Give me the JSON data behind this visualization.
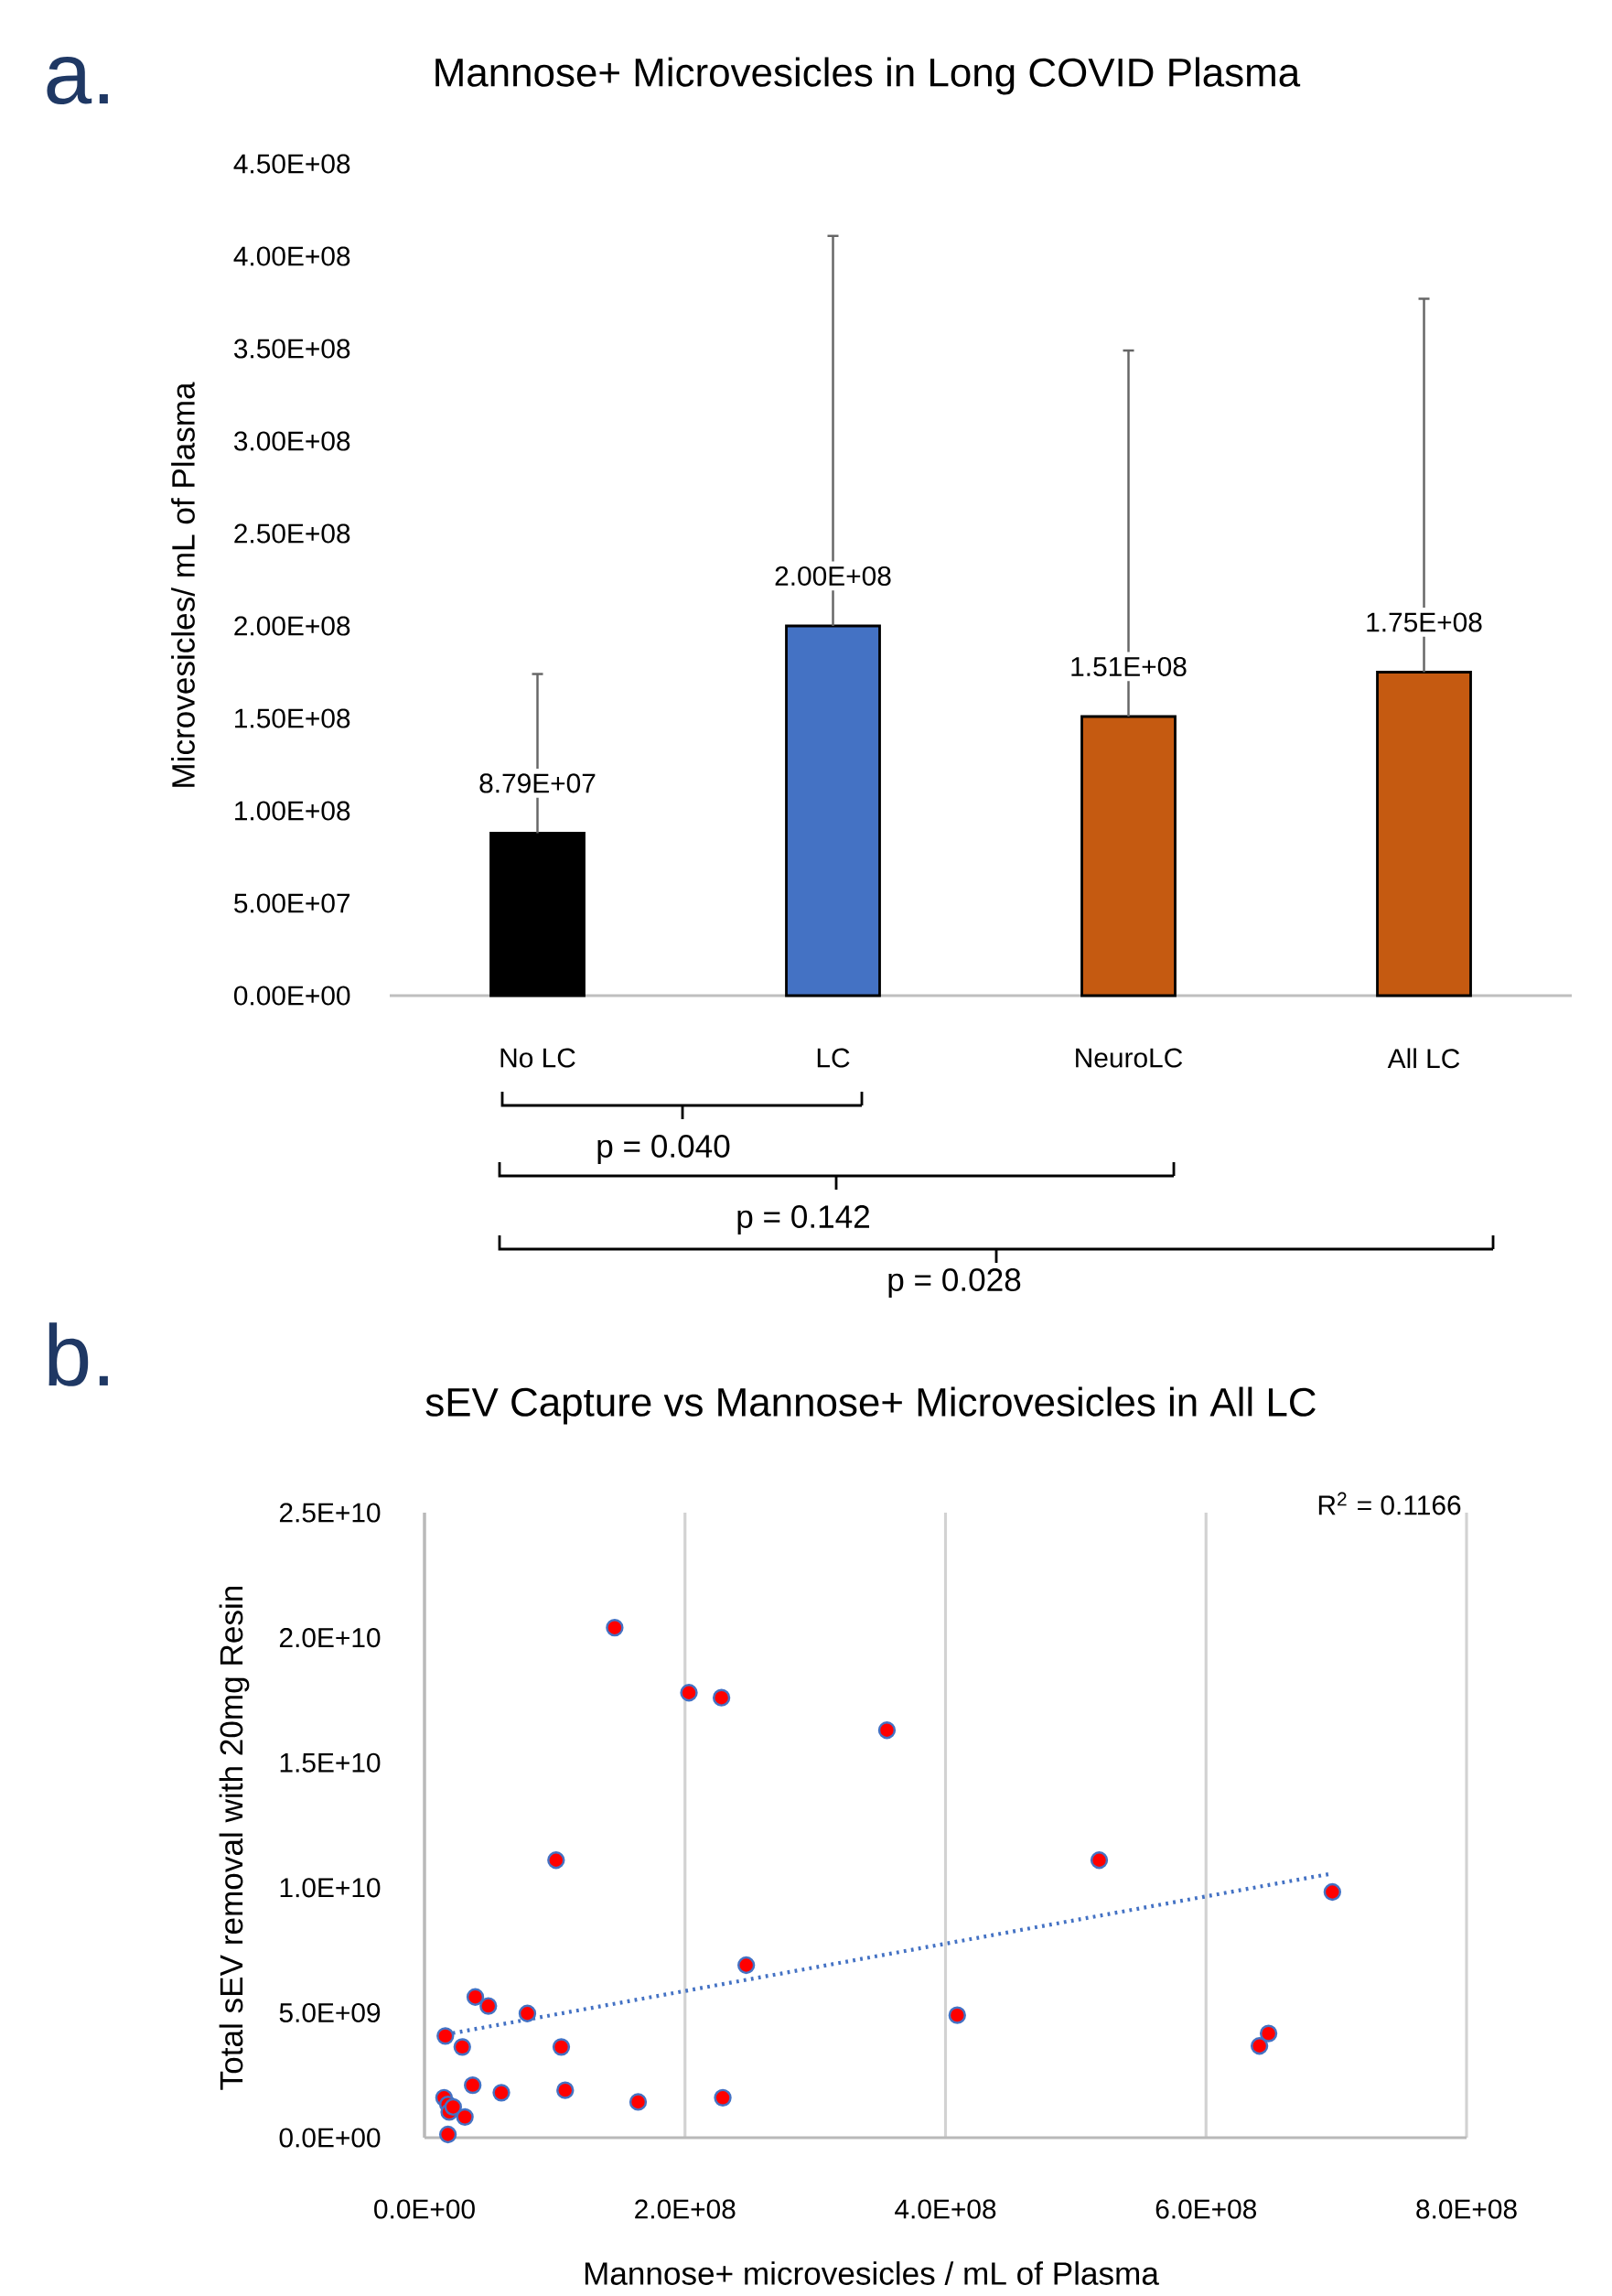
{
  "chart_data": [
    {
      "type": "bar",
      "title": "Mannose+ Microvesicles in Long COVID Plasma",
      "ylabel": "Microvesicles/ mL of Plasma",
      "categories": [
        "No LC",
        "LC",
        "NeuroLC",
        "All LC"
      ],
      "values": [
        87900000.0,
        200000000.0,
        151000000.0,
        175000000.0
      ],
      "colors": [
        "#000000",
        "#4472c4",
        "#c55a11",
        "#c55a11"
      ],
      "errors": [
        [
          87900000.0,
          174000000.0
        ],
        [
          200000000.0,
          411000000.0
        ],
        [
          151000000.0,
          349000000.0
        ],
        [
          175000000.0,
          377000000.0
        ]
      ],
      "value_labels": [
        "8.79E+07",
        "2.00E+08",
        "1.51E+08",
        "1.75E+08"
      ],
      "ylim": [
        0,
        450000000.0
      ],
      "yticks": [
        {
          "value": 0,
          "label": "0.00E+00"
        },
        {
          "value": 50000000.0,
          "label": "5.00E+07"
        },
        {
          "value": 100000000.0,
          "label": "1.00E+08"
        },
        {
          "value": 150000000.0,
          "label": "1.50E+08"
        },
        {
          "value": 200000000.0,
          "label": "2.00E+08"
        },
        {
          "value": 250000000.0,
          "label": "2.50E+08"
        },
        {
          "value": 300000000.0,
          "label": "3.00E+08"
        },
        {
          "value": 350000000.0,
          "label": "3.50E+08"
        },
        {
          "value": 400000000.0,
          "label": "4.00E+08"
        },
        {
          "value": 450000000.0,
          "label": "4.50E+08"
        }
      ],
      "annotations": [
        "a.",
        "p = 0.040",
        "p = 0.142",
        "p = 0.028"
      ]
    },
    {
      "type": "scatter",
      "title": "sEV Capture vs Mannose+ Microvesicles in All LC",
      "xlabel": "Mannose+ microvesicles / mL of Plasma",
      "ylabel": "Total sEV removal with 20mg  Resin",
      "series": [
        {
          "type": "scatter",
          "color": "#ff0000",
          "marker": "circle",
          "x": [
            146000000.0,
            203000000.0,
            228000000.0,
            355000000.0,
            101000000.0,
            518000000.0,
            697000000.0,
            247000000.0,
            39000000.0,
            49000000.0,
            79000000.0,
            409000000.0,
            16000000.0,
            29000000.0,
            105000000.0,
            648000000.0,
            641000000.0,
            37000000.0,
            59000000.0,
            108000000.0,
            164000000.0,
            229000000.0,
            15000000.0,
            18000000.0,
            19000000.0,
            22000000.0,
            31000000.0,
            18000000.0
          ],
          "values": [
            20400000000.0,
            17800000000.0,
            17600000000.0,
            16300000000.0,
            11100000000.0,
            11100000000.0,
            9830000000.0,
            6900000000.0,
            5630000000.0,
            5270000000.0,
            4970000000.0,
            4900000000.0,
            4070000000.0,
            3630000000.0,
            3630000000.0,
            4170000000.0,
            3670000000.0,
            2100000000.0,
            1800000000.0,
            1900000000.0,
            1430000000.0,
            1600000000.0,
            1600000000.0,
            1330000000.0,
            1030000000.0,
            1230000000.0,
            830000000.0,
            130000000.0
          ]
        },
        {
          "type": "line",
          "color": "#4472c4",
          "line_style": "dotted",
          "marker": "none",
          "x": [
            16000000.0,
            697000000.0
          ],
          "values": [
            4130000000.0,
            10570000000.0
          ]
        }
      ],
      "xlim": [
        0,
        800000000.0
      ],
      "ylim": [
        0,
        25000000000.0
      ],
      "xticks": [
        {
          "value": 0,
          "label": "0.0E+00"
        },
        {
          "value": 200000000.0,
          "label": "2.0E+08"
        },
        {
          "value": 400000000.0,
          "label": "4.0E+08"
        },
        {
          "value": 600000000.0,
          "label": "6.0E+08"
        },
        {
          "value": 800000000.0,
          "label": "8.0E+08"
        }
      ],
      "yticks": [
        {
          "value": 0,
          "label": "0.0E+00"
        },
        {
          "value": 5000000000.0,
          "label": "5.0E+09"
        },
        {
          "value": 10000000000.0,
          "label": "1.0E+10"
        },
        {
          "value": 15000000000.0,
          "label": "1.5E+10"
        },
        {
          "value": 20000000000.0,
          "label": "2.0E+10"
        },
        {
          "value": 25000000000.0,
          "label": "2.5E+10"
        }
      ],
      "grid": "x",
      "annotations": [
        "b.",
        "R$^{2}$ = 0.1166"
      ]
    }
  ]
}
